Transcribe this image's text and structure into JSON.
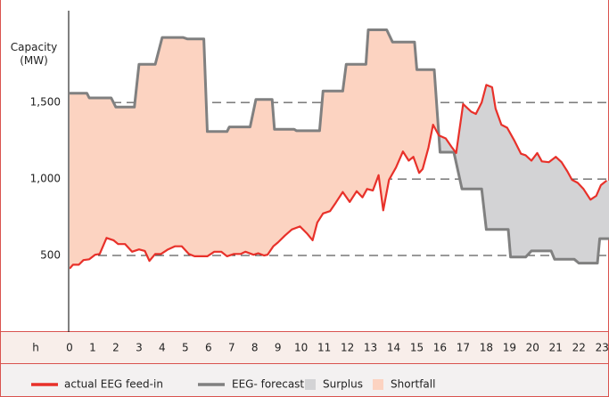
{
  "chart_data": {
    "type": "line",
    "ylabel": "Capacity (MW)",
    "xlabel": "h",
    "xlim": [
      0,
      23.3
    ],
    "ylim": [
      0,
      2100
    ],
    "xticks": [
      0,
      1,
      2,
      3,
      4,
      5,
      6,
      7,
      8,
      9,
      10,
      11,
      12,
      13,
      14,
      15,
      16,
      17,
      18,
      19,
      20,
      21,
      22,
      23
    ],
    "yticks": [
      500,
      {
        "value": 1000,
        "label": "1,000"
      },
      {
        "value": 1500,
        "label": "1,500"
      }
    ],
    "grid": true,
    "series": [
      {
        "name": "actual EEG feed-in",
        "color": "#e8312a",
        "x": [
          0,
          0.15,
          0.4,
          0.6,
          0.85,
          1.1,
          1.3,
          1.6,
          1.9,
          2.1,
          2.4,
          2.7,
          3.0,
          3.25,
          3.45,
          3.7,
          3.95,
          4.25,
          4.55,
          4.85,
          5.15,
          5.4,
          5.95,
          6.25,
          6.55,
          6.8,
          7.1,
          7.4,
          7.6,
          7.95,
          8.15,
          8.4,
          8.55,
          8.8,
          9.0,
          9.3,
          9.6,
          9.95,
          10.25,
          10.5,
          10.7,
          10.95,
          11.25,
          11.5,
          11.8,
          12.1,
          12.4,
          12.65,
          12.85,
          13.1,
          13.35,
          13.55,
          13.8,
          14.1,
          14.4,
          14.65,
          14.85,
          15.1,
          15.25,
          15.5,
          15.7,
          15.95,
          16.25,
          16.5,
          16.7,
          17.0,
          17.35,
          17.55,
          17.8,
          18.0,
          18.25,
          18.4,
          18.65,
          18.9,
          19.2,
          19.5,
          19.7,
          19.95,
          20.2,
          20.4,
          20.7,
          21.0,
          21.25,
          21.5,
          21.7,
          21.95,
          22.2,
          22.5,
          22.75,
          22.95,
          23.2
        ],
        "values": [
          415,
          440,
          440,
          470,
          475,
          505,
          510,
          615,
          600,
          575,
          575,
          525,
          540,
          530,
          465,
          510,
          510,
          540,
          560,
          560,
          510,
          495,
          495,
          525,
          525,
          495,
          510,
          510,
          525,
          505,
          515,
          500,
          505,
          560,
          585,
          630,
          670,
          690,
          645,
          600,
          715,
          775,
          790,
          845,
          915,
          850,
          920,
          880,
          935,
          925,
          1025,
          795,
          995,
          1075,
          1180,
          1120,
          1145,
          1040,
          1065,
          1205,
          1355,
          1285,
          1265,
          1210,
          1170,
          1490,
          1440,
          1425,
          1500,
          1615,
          1600,
          1460,
          1355,
          1335,
          1255,
          1165,
          1155,
          1120,
          1170,
          1115,
          1110,
          1145,
          1110,
          1050,
          995,
          975,
          935,
          865,
          890,
          960,
          990
        ]
      },
      {
        "name": "EEG- forecast",
        "color": "#808080",
        "x": [
          0,
          0.75,
          0.85,
          1.8,
          2.0,
          2.8,
          3.0,
          3.7,
          4.0,
          4.9,
          5.1,
          5.8,
          5.95,
          6.8,
          6.9,
          7.8,
          8.05,
          8.75,
          8.85,
          9.7,
          9.8,
          10.8,
          10.95,
          11.8,
          11.95,
          12.8,
          12.9,
          13.7,
          13.95,
          14.9,
          15.0,
          15.75,
          16.0,
          16.6,
          16.95,
          17.8,
          18.0,
          18.95,
          19.05,
          19.7,
          19.95,
          20.8,
          20.95,
          21.8,
          22.0,
          22.8,
          22.9,
          23.3
        ],
        "values": [
          1560,
          1560,
          1530,
          1530,
          1470,
          1470,
          1750,
          1750,
          1925,
          1925,
          1915,
          1915,
          1310,
          1310,
          1340,
          1340,
          1520,
          1520,
          1325,
          1325,
          1315,
          1315,
          1575,
          1575,
          1750,
          1750,
          1975,
          1975,
          1895,
          1895,
          1715,
          1715,
          1175,
          1175,
          935,
          935,
          670,
          670,
          490,
          490,
          530,
          530,
          475,
          475,
          450,
          450,
          610,
          610
        ]
      }
    ],
    "areas": [
      {
        "name": "Surplus",
        "color": "#d3d3d5"
      },
      {
        "name": "Shortfall",
        "color": "#fcd3c1"
      }
    ]
  }
}
